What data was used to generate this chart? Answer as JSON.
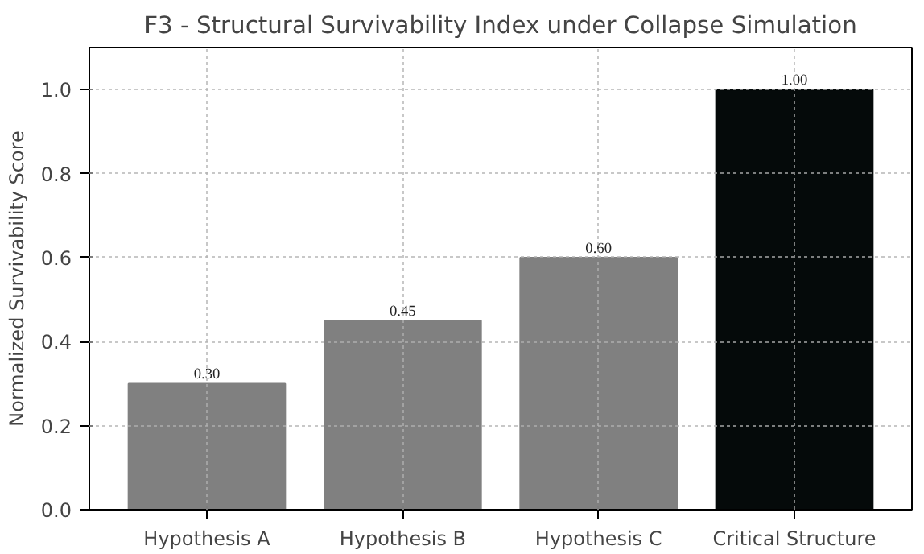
{
  "chart_data": {
    "type": "bar",
    "title": "F3 - Structural Survivability Index under Collapse Simulation",
    "ylabel": "Normalized Survivability Score",
    "categories": [
      "Hypothesis A",
      "Hypothesis B",
      "Hypothesis C",
      "Critical Structure"
    ],
    "values": [
      0.3,
      0.45,
      0.6,
      1.0
    ],
    "colors": [
      "#808080",
      "#808080",
      "#808080",
      "#050a0a"
    ],
    "value_labels": [
      "0.30",
      "0.45",
      "0.60",
      "1.00"
    ],
    "ylim": [
      0,
      1.1
    ],
    "yticks": [
      {
        "value": 0,
        "label": "0.0"
      },
      {
        "value": 0.2,
        "label": "0.2"
      },
      {
        "value": 0.4,
        "label": "0.4"
      },
      {
        "value": 0.6,
        "label": "0.6"
      },
      {
        "value": 0.8,
        "label": "0.8"
      },
      {
        "value": 1.0,
        "label": "1.0"
      }
    ],
    "grid": true
  }
}
